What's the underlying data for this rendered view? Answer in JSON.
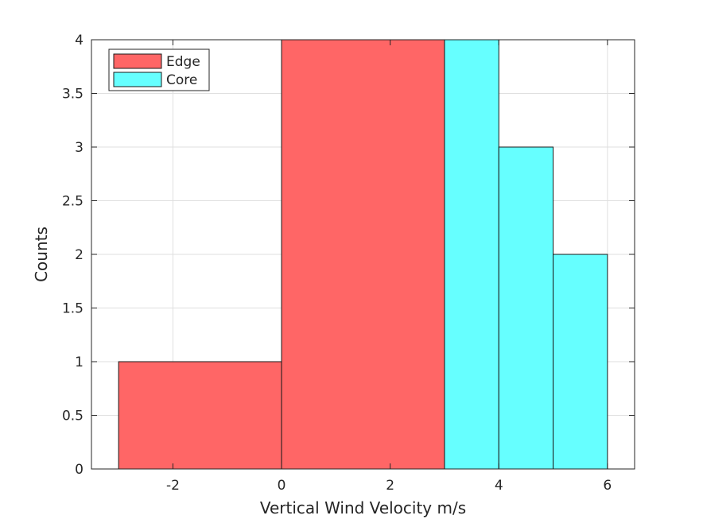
{
  "chart_data": {
    "type": "bar",
    "subtype": "histogram",
    "xlabel": "Vertical Wind Velocity m/s",
    "ylabel": "Counts",
    "xlim": [
      -3.5,
      6.5
    ],
    "ylim": [
      0,
      4
    ],
    "xticks": [
      -2,
      0,
      2,
      4,
      6
    ],
    "xtick_labels": [
      "-2",
      "0",
      "2",
      "4",
      "6"
    ],
    "yticks": [
      0,
      0.5,
      1,
      1.5,
      2,
      2.5,
      3,
      3.5,
      4
    ],
    "ytick_labels": [
      "0",
      "0.5",
      "1",
      "1.5",
      "2",
      "2.5",
      "3",
      "3.5",
      "4"
    ],
    "grid": true,
    "legend_position": "top-left",
    "series": [
      {
        "name": "Edge",
        "color": "#ff6666",
        "bins": [
          {
            "x0": -3,
            "x1": 0,
            "count": 1
          },
          {
            "x0": 0,
            "x1": 3,
            "count": 4
          }
        ]
      },
      {
        "name": "Core",
        "color": "#66ffff",
        "bins": [
          {
            "x0": 3,
            "x1": 4,
            "count": 4
          },
          {
            "x0": 4,
            "x1": 5,
            "count": 3
          },
          {
            "x0": 5,
            "x1": 6,
            "count": 2
          }
        ]
      }
    ]
  }
}
